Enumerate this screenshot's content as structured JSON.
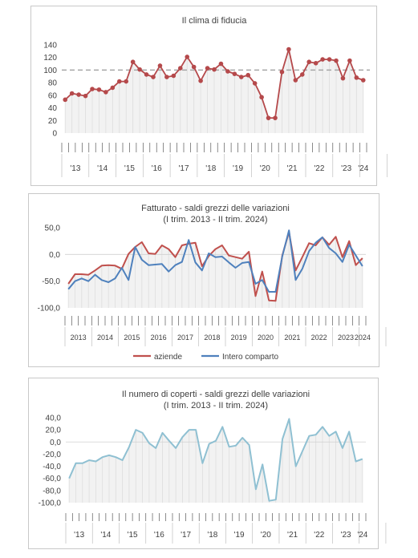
{
  "colors": {
    "fiducia": "#b5494b",
    "aziende": "#c0504d",
    "intero": "#4f81bd",
    "coperti": "#8fc0d2",
    "ref": "#a6a6a6",
    "grid": "#d9d9d9",
    "drop": "#dddddd"
  },
  "chart_data": [
    {
      "type": "line",
      "title": "Il clima di fiducia",
      "ylim": [
        0,
        140
      ],
      "yticks": [
        "0",
        "20",
        "40",
        "60",
        "80",
        "100",
        "120",
        "140"
      ],
      "reference_line": 100,
      "year_labels": [
        "'13",
        "'14",
        "'15",
        "'16",
        "'17",
        "'18",
        "'19",
        "'20",
        "'21",
        "'22",
        "'23",
        "'24"
      ],
      "markers": true,
      "drop_lines": true,
      "series": [
        {
          "values": [
            53,
            63,
            61,
            59,
            70,
            69,
            65,
            72,
            82,
            82,
            113,
            101,
            93,
            89,
            107,
            89,
            91,
            103,
            121,
            105,
            83,
            103,
            101,
            110,
            98,
            94,
            89,
            92,
            79,
            57,
            24,
            24,
            97,
            133,
            84,
            93,
            113,
            111,
            117,
            117,
            115,
            87,
            115,
            88,
            84
          ]
        }
      ]
    },
    {
      "type": "line",
      "title": "Fatturato - saldi grezzi delle variazioni",
      "subtitle": "(I trim. 2013 - II trim. 2024)",
      "ylim": [
        -100,
        50
      ],
      "yticks": [
        "-100,0",
        "-50,0",
        "0,0",
        "50,0"
      ],
      "year_labels": [
        "2013",
        "2014",
        "2015",
        "2016",
        "2017",
        "2018",
        "2019",
        "2020",
        "2021",
        "2022",
        "2023",
        "2024"
      ],
      "legend_position": "bottom",
      "drop_lines": true,
      "series": [
        {
          "name": "aziende",
          "values": [
            -55,
            -37,
            -37,
            -38,
            -30,
            -21,
            -20,
            -21,
            -27,
            1,
            14,
            23,
            2,
            1,
            17,
            10,
            -5,
            17,
            20,
            22,
            -22,
            -3,
            10,
            17,
            -2,
            -5,
            -8,
            5,
            -78,
            -32,
            -86,
            -87,
            -2,
            42,
            -30,
            -5,
            21,
            17,
            32,
            18,
            33,
            -5,
            25,
            -20,
            -7
          ]
        },
        {
          "name": "Intero comparto",
          "values": [
            -65,
            -50,
            -45,
            -50,
            -38,
            -48,
            -52,
            -45,
            -25,
            -48,
            14,
            -10,
            -20,
            -19,
            -18,
            -32,
            -20,
            -14,
            27,
            -15,
            -30,
            2,
            -5,
            -4,
            -15,
            -25,
            -16,
            -14,
            -55,
            -48,
            -70,
            -70,
            -4,
            45,
            -48,
            -27,
            6,
            22,
            32,
            12,
            2,
            -14,
            18,
            -2,
            -22
          ]
        }
      ]
    },
    {
      "type": "line",
      "title": "Il numero di coperti - saldi grezzi delle variazioni",
      "subtitle": "(I trim. 2013 - II trim. 2024)",
      "ylim": [
        -100,
        40
      ],
      "yticks": [
        "-100,0",
        "-80,0",
        "-60,0",
        "-40,0",
        "-20,0",
        "0,0",
        "20,0",
        "40,0"
      ],
      "year_labels": [
        "'13",
        "'14",
        "'15",
        "'16",
        "'17",
        "'18",
        "'19",
        "'20",
        "'21",
        "'22",
        "'23",
        "'24"
      ],
      "drop_lines": true,
      "series": [
        {
          "values": [
            -60,
            -35,
            -35,
            -30,
            -32,
            -25,
            -22,
            -25,
            -30,
            -8,
            20,
            15,
            -2,
            -10,
            15,
            2,
            -10,
            8,
            20,
            20,
            -35,
            -3,
            2,
            25,
            -8,
            -6,
            7,
            -5,
            -78,
            -37,
            -97,
            -95,
            5,
            38,
            -40,
            -15,
            10,
            12,
            25,
            10,
            17,
            -10,
            17,
            -32,
            -28
          ]
        }
      ]
    }
  ]
}
